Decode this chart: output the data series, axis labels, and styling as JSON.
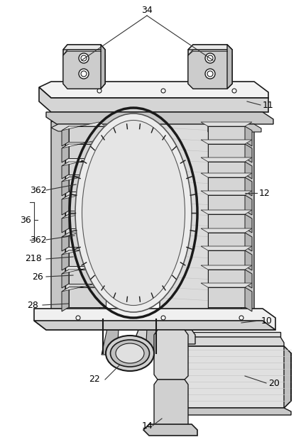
{
  "bg_color": "#ffffff",
  "dk": "#1a1a1a",
  "lc": "#555555",
  "lg": "#999999",
  "fc_light": "#e8e8e8",
  "fc_mid": "#d0d0d0",
  "fc_dark": "#b8b8b8",
  "fc_vdark": "#a0a0a0",
  "label_fontsize": 9,
  "figsize": [
    4.24,
    6.16
  ],
  "dpi": 100
}
